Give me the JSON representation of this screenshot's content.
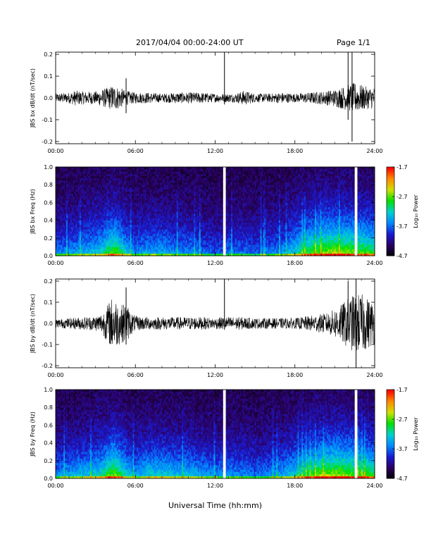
{
  "header": {
    "title": "2017/04/04  00:00-24:00 UT",
    "page": "Page 1/1"
  },
  "colors": {
    "line": "#000000",
    "spectrogram_scale": [
      "#000000",
      "#2a0060",
      "#1a1ad0",
      "#0088ff",
      "#00d0d0",
      "#00e000",
      "#d0e000",
      "#ff8800",
      "#ff0000"
    ]
  },
  "chart_data": [
    {
      "type": "line",
      "ylabel": "JBS bx dB/dt (nT/sec)",
      "xlim": [
        0,
        24
      ],
      "ylim": [
        -0.21,
        0.21
      ],
      "x_ticks": [
        "00:00",
        "06:00",
        "12:00",
        "18:00",
        "24:00"
      ],
      "y_ticks": [
        "0.2",
        "0.1",
        "0.0",
        "-0.1",
        "-0.2"
      ],
      "y_tick_values": [
        0.2,
        0.1,
        0.0,
        -0.1,
        -0.2
      ],
      "envelope": {
        "x": [
          0,
          1,
          1.5,
          2,
          3,
          3.5,
          4,
          4.3,
          4.8,
          5.2,
          6,
          7,
          8,
          9,
          10,
          11,
          12,
          12.7,
          13.5,
          14.2,
          15,
          16,
          17,
          18,
          19,
          20,
          21,
          21.5,
          22,
          22.5,
          23,
          23.5,
          24
        ],
        "y": [
          0.02,
          0.025,
          0.035,
          0.03,
          0.03,
          0.04,
          0.05,
          0.06,
          0.05,
          0.035,
          0.025,
          0.025,
          0.02,
          0.025,
          0.025,
          0.025,
          0.02,
          0.02,
          0.02,
          0.035,
          0.02,
          0.02,
          0.025,
          0.02,
          0.025,
          0.03,
          0.04,
          0.05,
          0.06,
          0.07,
          0.06,
          0.05,
          0.05
        ]
      },
      "spikes": [
        {
          "x": 12.7,
          "y_top": 0.21,
          "y_bottom": -0.03
        },
        {
          "x": 22.0,
          "y_top": 0.21,
          "y_bottom": -0.1
        },
        {
          "x": 22.3,
          "y_top": 0.21,
          "y_bottom": -0.2
        },
        {
          "x": 5.3,
          "y_top": 0.09,
          "y_bottom": -0.07
        }
      ]
    },
    {
      "type": "heatmap",
      "ylabel": "JBS bx Freq (Hz)",
      "colorbar_label": "Log₁₀ Power",
      "xlim": [
        0,
        24
      ],
      "ylim": [
        0,
        1.0
      ],
      "x_ticks": [
        "00:00",
        "06:00",
        "12:00",
        "18:00",
        "24:00"
      ],
      "y_ticks": [
        "1.0",
        "0.8",
        "0.6",
        "0.4",
        "0.2",
        "0.0"
      ],
      "y_tick_values": [
        1.0,
        0.8,
        0.6,
        0.4,
        0.2,
        0.0
      ],
      "colorbar_ticks": [
        "-1.7",
        "-2.7",
        "-3.7",
        "-4.7"
      ],
      "colorbar_tick_values": [
        -1.7,
        -2.7,
        -3.7,
        -4.7
      ],
      "zlim": [
        -4.7,
        -1.7
      ],
      "activity": {
        "x": [
          0,
          1,
          2,
          3,
          3.5,
          4,
          4.5,
          5,
          5.5,
          6,
          7,
          8,
          9,
          10,
          11,
          12,
          13,
          14,
          15,
          16,
          17,
          18,
          19,
          20,
          21,
          22,
          23,
          24
        ],
        "level": [
          0.35,
          0.4,
          0.45,
          0.5,
          0.55,
          0.7,
          0.75,
          0.6,
          0.45,
          0.4,
          0.45,
          0.45,
          0.4,
          0.4,
          0.35,
          0.3,
          0.35,
          0.35,
          0.3,
          0.35,
          0.4,
          0.55,
          0.7,
          0.8,
          0.85,
          0.8,
          0.75,
          0.7
        ]
      },
      "gaps": [
        12.7,
        22.6
      ]
    },
    {
      "type": "line",
      "ylabel": "JBS by dB/dt (nT/sec)",
      "xlim": [
        0,
        24
      ],
      "ylim": [
        -0.21,
        0.21
      ],
      "x_ticks": [
        "00:00",
        "06:00",
        "12:00",
        "18:00",
        "24:00"
      ],
      "y_ticks": [
        "0.2",
        "0.1",
        "0.0",
        "-0.1",
        "-0.2"
      ],
      "y_tick_values": [
        0.2,
        0.1,
        0.0,
        -0.1,
        -0.2
      ],
      "envelope": {
        "x": [
          0,
          1,
          2,
          3,
          3.5,
          4,
          4.3,
          4.6,
          5,
          5.3,
          5.6,
          6,
          7,
          8,
          9,
          10,
          11,
          12,
          12.5,
          13,
          14,
          15,
          16,
          17,
          18,
          19,
          20,
          20.5,
          21,
          21.5,
          22,
          22.5,
          23,
          23.5,
          24
        ],
        "y": [
          0.02,
          0.025,
          0.03,
          0.035,
          0.05,
          0.1,
          0.13,
          0.11,
          0.09,
          0.1,
          0.06,
          0.035,
          0.03,
          0.03,
          0.03,
          0.03,
          0.03,
          0.025,
          0.03,
          0.03,
          0.03,
          0.025,
          0.025,
          0.025,
          0.025,
          0.035,
          0.045,
          0.05,
          0.07,
          0.09,
          0.12,
          0.14,
          0.14,
          0.12,
          0.1
        ]
      },
      "spikes": [
        {
          "x": 12.7,
          "y_top": 0.21,
          "y_bottom": -0.03
        },
        {
          "x": 5.3,
          "y_top": 0.17,
          "y_bottom": -0.1
        },
        {
          "x": 22.6,
          "y_top": 0.21,
          "y_bottom": -0.21
        },
        {
          "x": 22.0,
          "y_top": 0.2,
          "y_bottom": -0.08
        }
      ]
    },
    {
      "type": "heatmap",
      "ylabel": "JBS by Freq (Hz)",
      "colorbar_label": "Log₁₀ Power",
      "xlabel": "Universal Time (hh:mm)",
      "xlim": [
        0,
        24
      ],
      "ylim": [
        0,
        1.0
      ],
      "x_ticks": [
        "00:00",
        "06:00",
        "12:00",
        "18:00",
        "24:00"
      ],
      "y_ticks": [
        "1.0",
        "0.8",
        "0.6",
        "0.4",
        "0.2",
        "0.0"
      ],
      "y_tick_values": [
        1.0,
        0.8,
        0.6,
        0.4,
        0.2,
        0.0
      ],
      "colorbar_ticks": [
        "-1.7",
        "-2.7",
        "-3.7",
        "-4.7"
      ],
      "colorbar_tick_values": [
        -1.7,
        -2.7,
        -3.7,
        -4.7
      ],
      "zlim": [
        -4.7,
        -1.7
      ],
      "activity": {
        "x": [
          0,
          1,
          2,
          3,
          3.5,
          4,
          4.5,
          5,
          5.5,
          6,
          7,
          8,
          9,
          10,
          11,
          12,
          13,
          14,
          15,
          16,
          17,
          18,
          19,
          20,
          21,
          22,
          23,
          24
        ],
        "level": [
          0.4,
          0.45,
          0.5,
          0.55,
          0.6,
          0.75,
          0.8,
          0.65,
          0.5,
          0.45,
          0.55,
          0.55,
          0.5,
          0.5,
          0.45,
          0.4,
          0.4,
          0.4,
          0.35,
          0.4,
          0.45,
          0.55,
          0.7,
          0.8,
          0.85,
          0.8,
          0.75,
          0.7
        ]
      },
      "gaps": [
        12.7,
        22.6
      ]
    }
  ]
}
